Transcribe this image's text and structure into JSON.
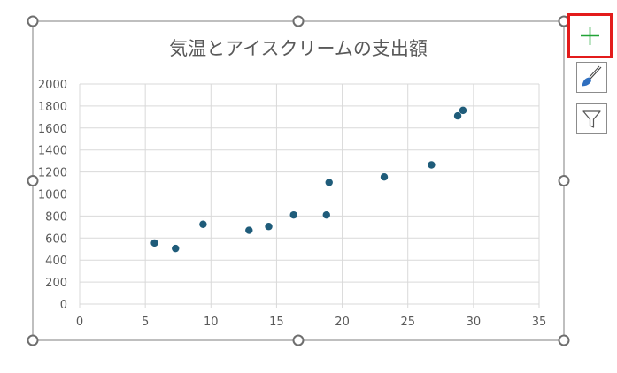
{
  "chart_data": {
    "type": "scatter",
    "title": "気温とアイスクリームの支出額",
    "xlabel": "",
    "ylabel": "",
    "xlim": [
      0,
      35
    ],
    "ylim": [
      0,
      2000
    ],
    "x_ticks": [
      "0",
      "5",
      "10",
      "15",
      "20",
      "25",
      "30",
      "35"
    ],
    "y_ticks": [
      "0",
      "200",
      "400",
      "600",
      "800",
      "1000",
      "1200",
      "1400",
      "1600",
      "1800",
      "2000"
    ],
    "grid": true,
    "legend": "none",
    "marker_color": "#1f5c7a",
    "x": [
      5.7,
      7.3,
      9.4,
      12.9,
      14.4,
      16.3,
      18.8,
      19.0,
      23.2,
      26.8,
      28.8,
      29.2
    ],
    "y": [
      555,
      505,
      725,
      670,
      705,
      810,
      810,
      1105,
      1155,
      1265,
      1710,
      1760
    ]
  },
  "chart_elements_buttons": [
    {
      "icon": "plus-icon",
      "color": "#21a336",
      "selected": true
    },
    {
      "icon": "paintbrush-icon",
      "color": "#2f6fbf",
      "selected": false
    },
    {
      "icon": "filter-icon",
      "color": "#555555",
      "selected": false
    }
  ],
  "colors": {
    "frame": "#7f7f7f",
    "grid": "#d9d9d9",
    "text": "#595959",
    "highlight": "#e31b1b"
  }
}
